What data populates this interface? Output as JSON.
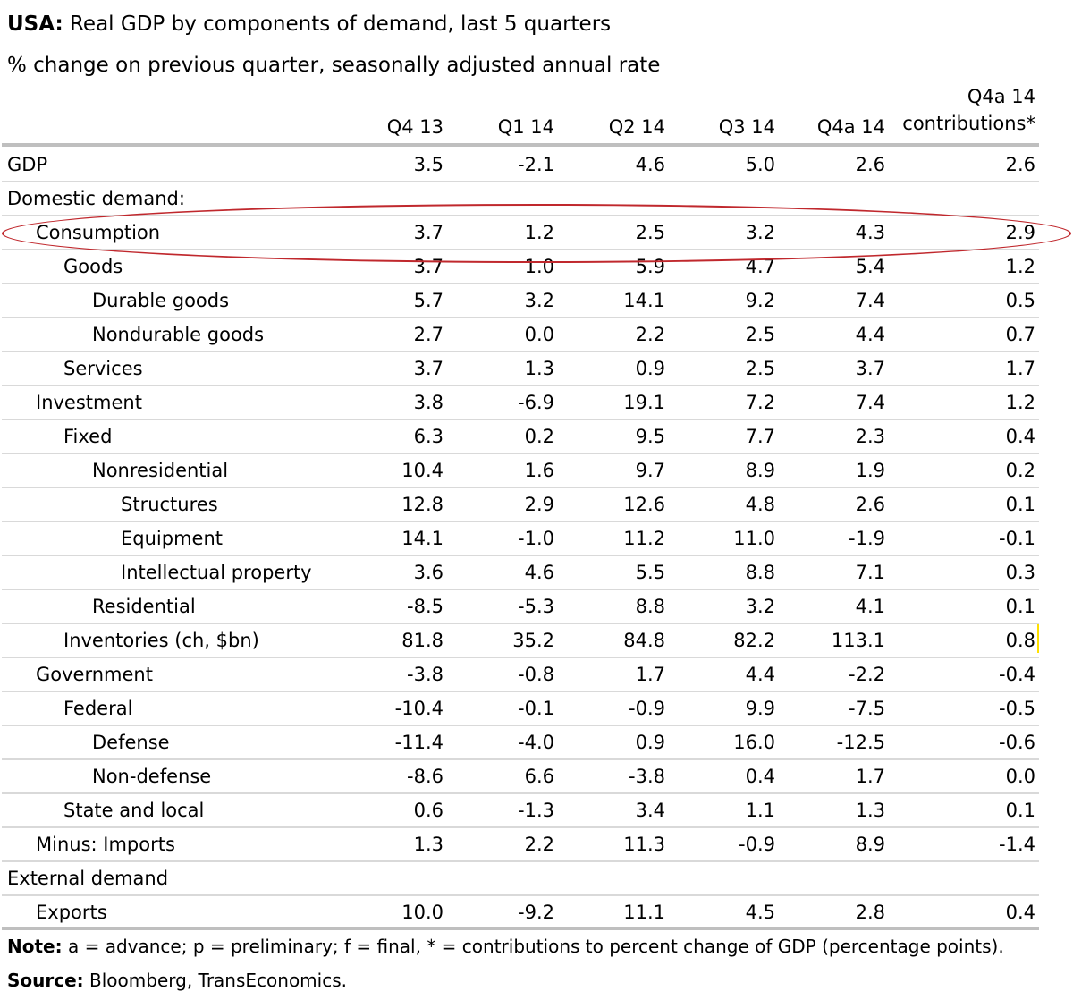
{
  "title": {
    "bold": "USA:",
    "text": "Real GDP by components of demand, last 5 quarters"
  },
  "subtitle": "% change on previous quarter, seasonally adjusted annual rate",
  "columns": [
    "Q4 13",
    "Q1 14",
    "Q2 14",
    "Q3 14",
    "Q4a 14"
  ],
  "contrib_header": {
    "line1": "Q4a 14",
    "line2": "contributions*"
  },
  "rows": [
    {
      "label": "GDP",
      "values": [
        "3.5",
        "-2.1",
        "4.6",
        "5.0",
        "2.6",
        "2.6"
      ]
    },
    {
      "label": "Domestic demand:",
      "values": [
        "",
        "",
        "",
        "",
        "",
        ""
      ]
    },
    {
      "label": "Consumption",
      "values": [
        "3.7",
        "1.2",
        "2.5",
        "3.2",
        "4.3",
        "2.9"
      ]
    },
    {
      "label": "Goods",
      "values": [
        "3.7",
        "1.0",
        "5.9",
        "4.7",
        "5.4",
        "1.2"
      ]
    },
    {
      "label": "Durable goods",
      "values": [
        "5.7",
        "3.2",
        "14.1",
        "9.2",
        "7.4",
        "0.5"
      ]
    },
    {
      "label": "Nondurable goods",
      "values": [
        "2.7",
        "0.0",
        "2.2",
        "2.5",
        "4.4",
        "0.7"
      ]
    },
    {
      "label": "Services",
      "values": [
        "3.7",
        "1.3",
        "0.9",
        "2.5",
        "3.7",
        "1.7"
      ]
    },
    {
      "label": "Investment",
      "values": [
        "3.8",
        "-6.9",
        "19.1",
        "7.2",
        "7.4",
        "1.2"
      ]
    },
    {
      "label": "Fixed",
      "values": [
        "6.3",
        "0.2",
        "9.5",
        "7.7",
        "2.3",
        "0.4"
      ]
    },
    {
      "label": "Nonresidential",
      "values": [
        "10.4",
        "1.6",
        "9.7",
        "8.9",
        "1.9",
        "0.2"
      ]
    },
    {
      "label": "Structures",
      "values": [
        "12.8",
        "2.9",
        "12.6",
        "4.8",
        "2.6",
        "0.1"
      ]
    },
    {
      "label": "Equipment",
      "values": [
        "14.1",
        "-1.0",
        "11.2",
        "11.0",
        "-1.9",
        "-0.1"
      ]
    },
    {
      "label": "Intellectual property",
      "values": [
        "3.6",
        "4.6",
        "5.5",
        "8.8",
        "7.1",
        "0.3"
      ]
    },
    {
      "label": "Residential",
      "values": [
        "-8.5",
        "-5.3",
        "8.8",
        "3.2",
        "4.1",
        "0.1"
      ]
    },
    {
      "label": "Inventories (ch, $bn)",
      "values": [
        "81.8",
        "35.2",
        "84.8",
        "82.2",
        "113.1",
        "0.8"
      ]
    },
    {
      "label": "Government",
      "values": [
        "-3.8",
        "-0.8",
        "1.7",
        "4.4",
        "-2.2",
        "-0.4"
      ]
    },
    {
      "label": "Federal",
      "values": [
        "-10.4",
        "-0.1",
        "-0.9",
        "9.9",
        "-7.5",
        "-0.5"
      ]
    },
    {
      "label": "Defense",
      "values": [
        "-11.4",
        "-4.0",
        "0.9",
        "16.0",
        "-12.5",
        "-0.6"
      ]
    },
    {
      "label": "Non-defense",
      "values": [
        "-8.6",
        "6.6",
        "-3.8",
        "0.4",
        "1.7",
        "0.0"
      ]
    },
    {
      "label": "State and local",
      "values": [
        "0.6",
        "-1.3",
        "3.4",
        "1.1",
        "1.3",
        "0.1"
      ]
    },
    {
      "label": "Minus: Imports",
      "values": [
        "1.3",
        "2.2",
        "11.3",
        "-0.9",
        "8.9",
        "-1.4"
      ]
    },
    {
      "label": "External demand",
      "values": [
        "",
        "",
        "",
        "",
        "",
        ""
      ]
    },
    {
      "label": "Exports",
      "values": [
        "10.0",
        "-9.2",
        "11.1",
        "4.5",
        "2.8",
        "0.4"
      ]
    }
  ],
  "note": {
    "bold": "Note:",
    "text": "a = advance; p = preliminary; f = final, * =  contributions to percent change of GDP (percentage points)."
  },
  "source": {
    "bold": "Source:",
    "text": "Bloomberg, TransEconomics."
  },
  "colors": {
    "highlight_ellipse": "#c0282d",
    "rule": "#bfbfbf",
    "cell_marker": "#ffe000"
  }
}
